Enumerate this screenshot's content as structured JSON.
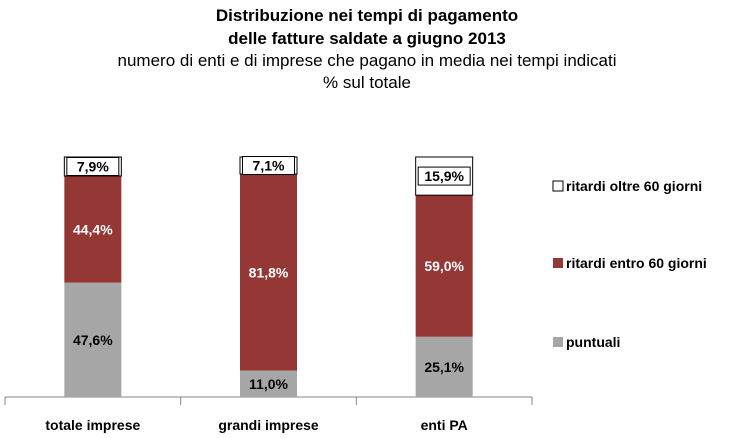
{
  "chart_data": {
    "type": "bar",
    "stacked": true,
    "percent_stacked": true,
    "title": [
      "Distribuzione nei tempi di pagamento",
      "delle fatture saldate a giugno 2013"
    ],
    "subtitle": [
      "numero di enti e di imprese che pagano in media nei tempi indicati",
      "% sul totale"
    ],
    "categories": [
      "totale imprese",
      "grandi imprese",
      "enti PA"
    ],
    "series": [
      {
        "name": "puntuali",
        "values": [
          47.6,
          11.0,
          25.1
        ],
        "labels": [
          "47,6%",
          "11,0%",
          "25,1%"
        ],
        "color": "#a6a6a6",
        "label_color": "#000000"
      },
      {
        "name": "ritardi entro 60 giorni",
        "values": [
          44.4,
          81.8,
          59.0
        ],
        "labels": [
          "44,4%",
          "81,8%",
          "59,0%"
        ],
        "color": "#953735",
        "label_color": "#ffffff"
      },
      {
        "name": "ritardi oltre 60 giorni",
        "values": [
          7.9,
          7.1,
          15.9
        ],
        "labels": [
          "7,9%",
          "7,1%",
          "15,9%"
        ],
        "color": "#ffffff",
        "label_color": "#000000"
      }
    ],
    "ylim": [
      0,
      100
    ],
    "grid": false,
    "legend_position": "right",
    "legend_order": [
      "ritardi oltre 60 giorni",
      "ritardi entro 60 giorni",
      "puntuali"
    ]
  }
}
